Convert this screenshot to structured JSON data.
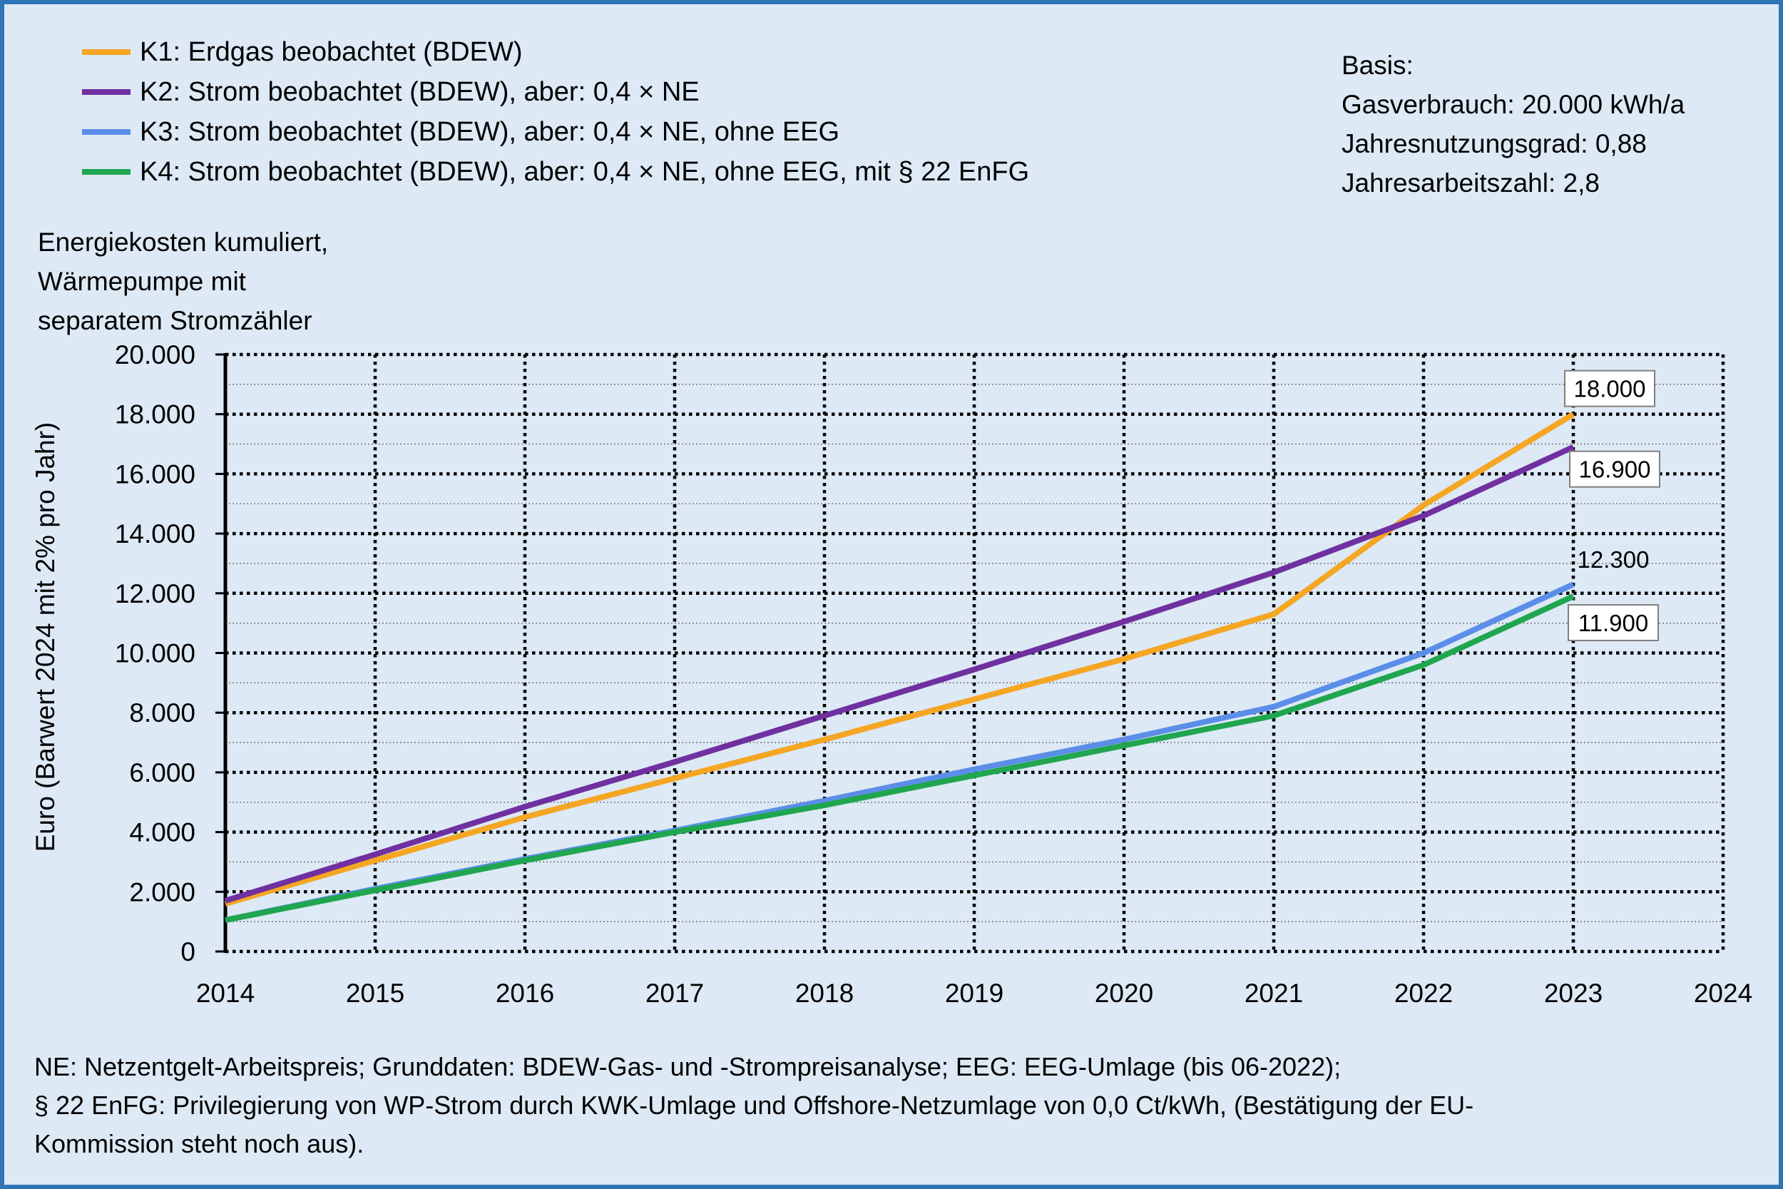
{
  "colors": {
    "background": "#dde9f5",
    "frame": "#2e75b6"
  },
  "chart_data": {
    "type": "line",
    "y_title": [
      "Energiekosten kumuliert,",
      "Wärmepumpe mit",
      "separatem Stromzähler"
    ],
    "ylabel": "Euro (Barwert 2024 mit 2% pro Jahr)",
    "xlabel": "",
    "x": [
      2014,
      2015,
      2016,
      2017,
      2018,
      2019,
      2020,
      2021,
      2022,
      2023
    ],
    "xlim": [
      2014,
      2024
    ],
    "x_ticks": [
      2014,
      2015,
      2016,
      2017,
      2018,
      2019,
      2020,
      2021,
      2022,
      2023,
      2024
    ],
    "x_tick_labels": [
      "2014",
      "2015",
      "2016",
      "2017",
      "2018",
      "2019",
      "2020",
      "2021",
      "2022",
      "2023",
      "2024"
    ],
    "ylim": [
      0,
      20000
    ],
    "y_ticks": [
      0,
      2000,
      4000,
      6000,
      8000,
      10000,
      12000,
      14000,
      16000,
      18000,
      20000
    ],
    "y_tick_labels": [
      "0",
      "2.000",
      "4.000",
      "6.000",
      "8.000",
      "10.000",
      "12.000",
      "14.000",
      "16.000",
      "18.000",
      "20.000"
    ],
    "grid": true,
    "legend_position": "top-left",
    "series": [
      {
        "name": "K1: Erdgas beobachtet (BDEW)",
        "color": "#f5a623",
        "values": [
          1600,
          3050,
          4500,
          5800,
          7100,
          8450,
          9800,
          11300,
          14950,
          18000
        ],
        "end_label": "18.000"
      },
      {
        "name": "K2: Strom beobachtet (BDEW), aber: 0,4 × NE",
        "color": "#7030a0",
        "values": [
          1700,
          3250,
          4850,
          6350,
          7900,
          9450,
          11050,
          12700,
          14600,
          16900
        ],
        "end_label": "16.900"
      },
      {
        "name": "K3: Strom beobachtet (BDEW), aber: 0,4 × NE, ohne EEG",
        "color": "#5b8ee8",
        "values": [
          1050,
          2100,
          3100,
          4050,
          5050,
          6100,
          7100,
          8200,
          10000,
          12300
        ],
        "end_label": "12.300"
      },
      {
        "name": "K4: Strom beobachtet (BDEW), aber: 0,4 × NE, ohne EEG, mit § 22 EnFG",
        "color": "#1fa64f",
        "values": [
          1050,
          2050,
          3050,
          4000,
          4900,
          5900,
          6900,
          7900,
          9600,
          11900
        ],
        "end_label": "11.900"
      }
    ]
  },
  "basis": {
    "title": "Basis:",
    "lines": [
      "Gasverbrauch: 20.000 kWh/a",
      "Jahresnutzungsgrad: 0,88",
      "Jahresarbeitszahl: 2,8"
    ]
  },
  "footnote": [
    "NE: Netzentgelt-Arbeitspreis; Grunddaten: BDEW-Gas- und -Strompreisanalyse; EEG: EEG-Umlage (bis 06-2022);",
    "§ 22 EnFG: Privilegierung von WP-Strom durch KWK-Umlage und Offshore-Netzumlage von 0,0 Ct/kWh, (Bestätigung der EU-",
    "Kommission steht noch aus)."
  ]
}
